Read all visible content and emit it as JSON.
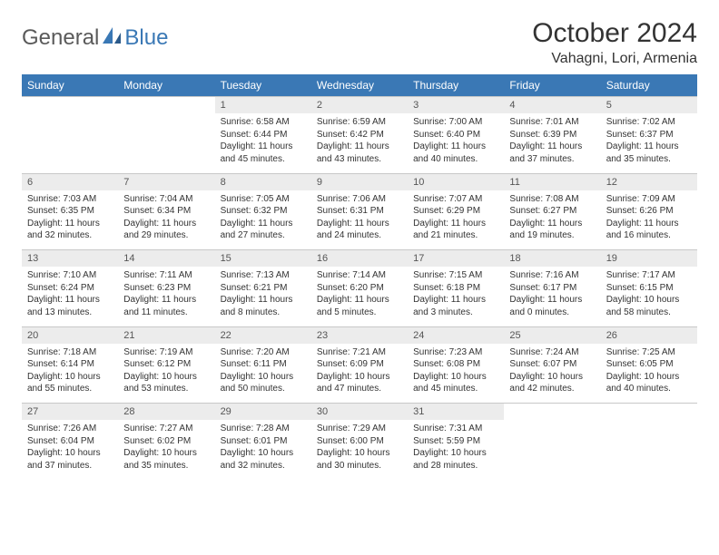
{
  "brand": {
    "general": "General",
    "blue": "Blue"
  },
  "title": "October 2024",
  "location": "Vahagni, Lori, Armenia",
  "colors": {
    "header_bg": "#3a78b5",
    "header_text": "#ffffff",
    "daynum_bg": "#ececec",
    "daynum_text": "#555555",
    "cell_text": "#333333",
    "border": "#c8c8c8",
    "logo_gray": "#5a5a5a",
    "logo_blue": "#3a78b5"
  },
  "weekdays": [
    "Sunday",
    "Monday",
    "Tuesday",
    "Wednesday",
    "Thursday",
    "Friday",
    "Saturday"
  ],
  "weeks": [
    [
      null,
      null,
      {
        "n": "1",
        "sr": "Sunrise: 6:58 AM",
        "ss": "Sunset: 6:44 PM",
        "d1": "Daylight: 11 hours",
        "d2": "and 45 minutes."
      },
      {
        "n": "2",
        "sr": "Sunrise: 6:59 AM",
        "ss": "Sunset: 6:42 PM",
        "d1": "Daylight: 11 hours",
        "d2": "and 43 minutes."
      },
      {
        "n": "3",
        "sr": "Sunrise: 7:00 AM",
        "ss": "Sunset: 6:40 PM",
        "d1": "Daylight: 11 hours",
        "d2": "and 40 minutes."
      },
      {
        "n": "4",
        "sr": "Sunrise: 7:01 AM",
        "ss": "Sunset: 6:39 PM",
        "d1": "Daylight: 11 hours",
        "d2": "and 37 minutes."
      },
      {
        "n": "5",
        "sr": "Sunrise: 7:02 AM",
        "ss": "Sunset: 6:37 PM",
        "d1": "Daylight: 11 hours",
        "d2": "and 35 minutes."
      }
    ],
    [
      {
        "n": "6",
        "sr": "Sunrise: 7:03 AM",
        "ss": "Sunset: 6:35 PM",
        "d1": "Daylight: 11 hours",
        "d2": "and 32 minutes."
      },
      {
        "n": "7",
        "sr": "Sunrise: 7:04 AM",
        "ss": "Sunset: 6:34 PM",
        "d1": "Daylight: 11 hours",
        "d2": "and 29 minutes."
      },
      {
        "n": "8",
        "sr": "Sunrise: 7:05 AM",
        "ss": "Sunset: 6:32 PM",
        "d1": "Daylight: 11 hours",
        "d2": "and 27 minutes."
      },
      {
        "n": "9",
        "sr": "Sunrise: 7:06 AM",
        "ss": "Sunset: 6:31 PM",
        "d1": "Daylight: 11 hours",
        "d2": "and 24 minutes."
      },
      {
        "n": "10",
        "sr": "Sunrise: 7:07 AM",
        "ss": "Sunset: 6:29 PM",
        "d1": "Daylight: 11 hours",
        "d2": "and 21 minutes."
      },
      {
        "n": "11",
        "sr": "Sunrise: 7:08 AM",
        "ss": "Sunset: 6:27 PM",
        "d1": "Daylight: 11 hours",
        "d2": "and 19 minutes."
      },
      {
        "n": "12",
        "sr": "Sunrise: 7:09 AM",
        "ss": "Sunset: 6:26 PM",
        "d1": "Daylight: 11 hours",
        "d2": "and 16 minutes."
      }
    ],
    [
      {
        "n": "13",
        "sr": "Sunrise: 7:10 AM",
        "ss": "Sunset: 6:24 PM",
        "d1": "Daylight: 11 hours",
        "d2": "and 13 minutes."
      },
      {
        "n": "14",
        "sr": "Sunrise: 7:11 AM",
        "ss": "Sunset: 6:23 PM",
        "d1": "Daylight: 11 hours",
        "d2": "and 11 minutes."
      },
      {
        "n": "15",
        "sr": "Sunrise: 7:13 AM",
        "ss": "Sunset: 6:21 PM",
        "d1": "Daylight: 11 hours",
        "d2": "and 8 minutes."
      },
      {
        "n": "16",
        "sr": "Sunrise: 7:14 AM",
        "ss": "Sunset: 6:20 PM",
        "d1": "Daylight: 11 hours",
        "d2": "and 5 minutes."
      },
      {
        "n": "17",
        "sr": "Sunrise: 7:15 AM",
        "ss": "Sunset: 6:18 PM",
        "d1": "Daylight: 11 hours",
        "d2": "and 3 minutes."
      },
      {
        "n": "18",
        "sr": "Sunrise: 7:16 AM",
        "ss": "Sunset: 6:17 PM",
        "d1": "Daylight: 11 hours",
        "d2": "and 0 minutes."
      },
      {
        "n": "19",
        "sr": "Sunrise: 7:17 AM",
        "ss": "Sunset: 6:15 PM",
        "d1": "Daylight: 10 hours",
        "d2": "and 58 minutes."
      }
    ],
    [
      {
        "n": "20",
        "sr": "Sunrise: 7:18 AM",
        "ss": "Sunset: 6:14 PM",
        "d1": "Daylight: 10 hours",
        "d2": "and 55 minutes."
      },
      {
        "n": "21",
        "sr": "Sunrise: 7:19 AM",
        "ss": "Sunset: 6:12 PM",
        "d1": "Daylight: 10 hours",
        "d2": "and 53 minutes."
      },
      {
        "n": "22",
        "sr": "Sunrise: 7:20 AM",
        "ss": "Sunset: 6:11 PM",
        "d1": "Daylight: 10 hours",
        "d2": "and 50 minutes."
      },
      {
        "n": "23",
        "sr": "Sunrise: 7:21 AM",
        "ss": "Sunset: 6:09 PM",
        "d1": "Daylight: 10 hours",
        "d2": "and 47 minutes."
      },
      {
        "n": "24",
        "sr": "Sunrise: 7:23 AM",
        "ss": "Sunset: 6:08 PM",
        "d1": "Daylight: 10 hours",
        "d2": "and 45 minutes."
      },
      {
        "n": "25",
        "sr": "Sunrise: 7:24 AM",
        "ss": "Sunset: 6:07 PM",
        "d1": "Daylight: 10 hours",
        "d2": "and 42 minutes."
      },
      {
        "n": "26",
        "sr": "Sunrise: 7:25 AM",
        "ss": "Sunset: 6:05 PM",
        "d1": "Daylight: 10 hours",
        "d2": "and 40 minutes."
      }
    ],
    [
      {
        "n": "27",
        "sr": "Sunrise: 7:26 AM",
        "ss": "Sunset: 6:04 PM",
        "d1": "Daylight: 10 hours",
        "d2": "and 37 minutes."
      },
      {
        "n": "28",
        "sr": "Sunrise: 7:27 AM",
        "ss": "Sunset: 6:02 PM",
        "d1": "Daylight: 10 hours",
        "d2": "and 35 minutes."
      },
      {
        "n": "29",
        "sr": "Sunrise: 7:28 AM",
        "ss": "Sunset: 6:01 PM",
        "d1": "Daylight: 10 hours",
        "d2": "and 32 minutes."
      },
      {
        "n": "30",
        "sr": "Sunrise: 7:29 AM",
        "ss": "Sunset: 6:00 PM",
        "d1": "Daylight: 10 hours",
        "d2": "and 30 minutes."
      },
      {
        "n": "31",
        "sr": "Sunrise: 7:31 AM",
        "ss": "Sunset: 5:59 PM",
        "d1": "Daylight: 10 hours",
        "d2": "and 28 minutes."
      },
      null,
      null
    ]
  ]
}
